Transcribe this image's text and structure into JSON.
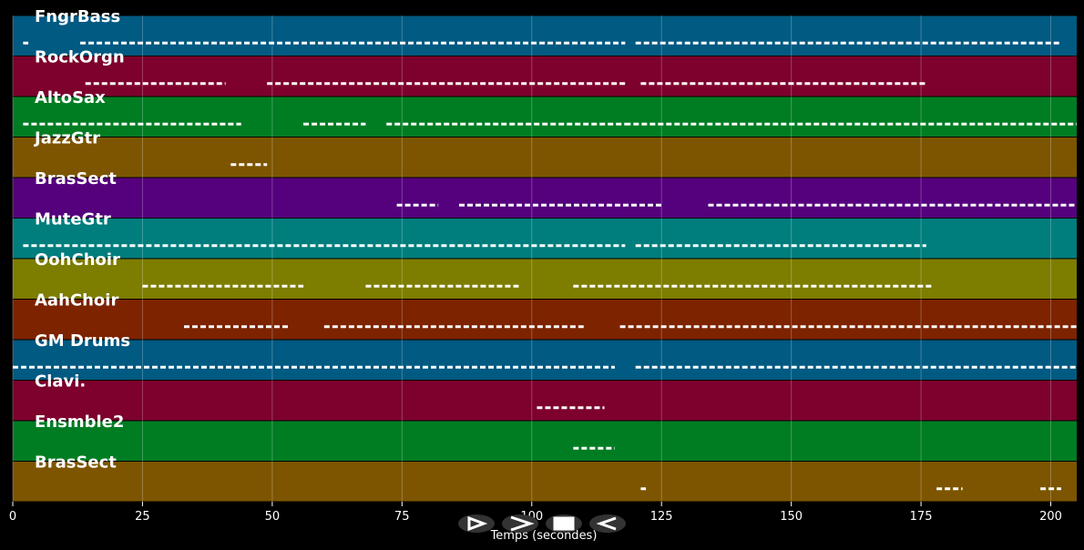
{
  "chart_data": {
    "type": "pianoroll",
    "xlabel": "Temps (secondes)",
    "xlim": [
      0,
      205
    ],
    "xticks": [
      0,
      25,
      50,
      75,
      100,
      125,
      150,
      175,
      200
    ],
    "grid": true,
    "tracks": [
      {
        "name": "FngrBass",
        "color": "#005a82",
        "segments": [
          [
            2,
            3
          ],
          [
            13,
            118
          ],
          [
            120,
            202
          ]
        ]
      },
      {
        "name": "RockOrgn",
        "color": "#7d002d",
        "segments": [
          [
            14,
            41
          ],
          [
            49,
            118
          ],
          [
            121,
            176
          ]
        ]
      },
      {
        "name": "AltoSax",
        "color": "#007d23",
        "segments": [
          [
            2,
            44
          ],
          [
            56,
            68
          ],
          [
            72,
            118
          ],
          [
            118,
            205
          ]
        ]
      },
      {
        "name": "JazzGtr",
        "color": "#7d5500",
        "segments": [
          [
            42,
            49
          ]
        ]
      },
      {
        "name": "BrasSect",
        "color": "#55007d",
        "segments": [
          [
            74,
            82
          ],
          [
            86,
            125
          ],
          [
            134,
            205
          ]
        ]
      },
      {
        "name": "MuteGtr",
        "color": "#007d7d",
        "segments": [
          [
            2,
            118
          ],
          [
            120,
            176
          ]
        ]
      },
      {
        "name": "OohChoir",
        "color": "#7d7d00",
        "segments": [
          [
            25,
            56
          ],
          [
            68,
            98
          ],
          [
            108,
            177
          ]
        ]
      },
      {
        "name": "AahChoir",
        "color": "#7d2300",
        "segments": [
          [
            33,
            53
          ],
          [
            60,
            110
          ],
          [
            117,
            205
          ]
        ]
      },
      {
        "name": "GM Drums",
        "color": "#005a82",
        "segments": [
          [
            0,
            116
          ],
          [
            120,
            205
          ]
        ]
      },
      {
        "name": "Clavi.",
        "color": "#7d002d",
        "segments": [
          [
            101,
            114
          ]
        ]
      },
      {
        "name": "Ensmble2",
        "color": "#007d23",
        "segments": [
          [
            108,
            116
          ]
        ]
      },
      {
        "name": "BrasSect",
        "color": "#7d5500",
        "segments": [
          [
            121,
            122
          ],
          [
            178,
            183
          ],
          [
            198,
            202
          ]
        ]
      }
    ]
  }
}
